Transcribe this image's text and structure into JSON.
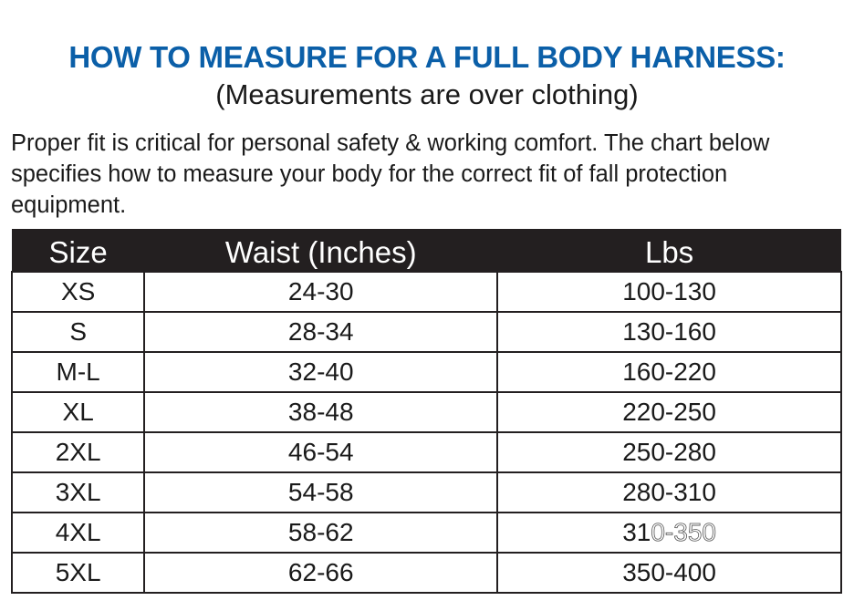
{
  "title": "HOW TO MEASURE FOR A FULL BODY HARNESS:",
  "subtitle": "(Measurements are over clothing)",
  "intro": "Proper fit is critical for personal safety & working comfort. The chart below specifies how to measure your body for the correct fit of fall protection equipment.",
  "colors": {
    "title": "#0b5fa8",
    "header_bg": "#231f20"
  },
  "table": {
    "headers": [
      "Size",
      "Waist (Inches)",
      "Lbs"
    ],
    "rows": [
      [
        "XS",
        "24-30",
        "100-130"
      ],
      [
        "S",
        "28-34",
        "130-160"
      ],
      [
        "M-L",
        "32-40",
        "160-220"
      ],
      [
        "XL",
        "38-48",
        "220-250"
      ],
      [
        "2XL",
        "46-54",
        "250-280"
      ],
      [
        "3XL",
        "54-58",
        "280-310"
      ],
      [
        "4XL",
        "58-62",
        "310-350"
      ],
      [
        "5XL",
        "62-66",
        "350-400"
      ]
    ]
  }
}
